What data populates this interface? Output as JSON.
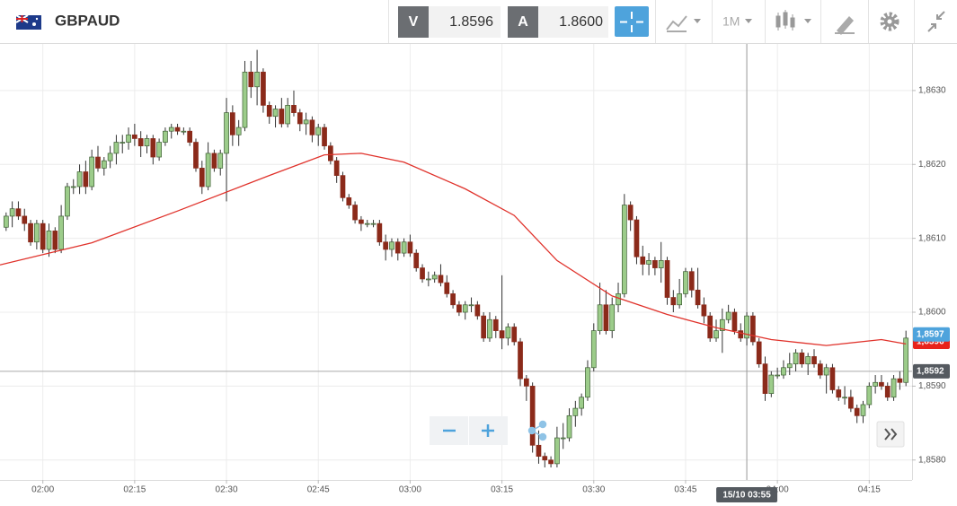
{
  "header": {
    "symbol": "GBPAUD",
    "sell_label": "V",
    "sell_price": "1.8596",
    "buy_label": "A",
    "buy_price": "1.8600",
    "timeframe": "1M"
  },
  "chart_data": {
    "type": "candlestick",
    "x": [
      "01:54",
      "01:55",
      "01:56",
      "01:57",
      "01:58",
      "01:59",
      "02:00",
      "02:01",
      "02:02",
      "02:03",
      "02:04",
      "02:05",
      "02:06",
      "02:07",
      "02:08",
      "02:09",
      "02:10",
      "02:11",
      "02:12",
      "02:13",
      "02:14",
      "02:15",
      "02:16",
      "02:17",
      "02:18",
      "02:19",
      "02:20",
      "02:21",
      "02:22",
      "02:23",
      "02:24",
      "02:25",
      "02:26",
      "02:27",
      "02:28",
      "02:29",
      "02:30",
      "02:31",
      "02:32",
      "02:33",
      "02:34",
      "02:35",
      "02:36",
      "02:37",
      "02:38",
      "02:39",
      "02:40",
      "02:41",
      "02:42",
      "02:43",
      "02:44",
      "02:45",
      "02:46",
      "02:47",
      "02:48",
      "02:49",
      "02:50",
      "02:51",
      "02:52",
      "02:53",
      "02:54",
      "02:55",
      "02:56",
      "02:57",
      "02:58",
      "02:59",
      "03:00",
      "03:01",
      "03:02",
      "03:03",
      "03:04",
      "03:05",
      "03:06",
      "03:07",
      "03:08",
      "03:09",
      "03:10",
      "03:11",
      "03:12",
      "03:13",
      "03:14",
      "03:15",
      "03:16",
      "03:17",
      "03:18",
      "03:19",
      "03:20",
      "03:21",
      "03:22",
      "03:23",
      "03:24",
      "03:25",
      "03:26",
      "03:27",
      "03:28",
      "03:29",
      "03:30",
      "03:31",
      "03:32",
      "03:33",
      "03:34",
      "03:35",
      "03:36",
      "03:37",
      "03:38",
      "03:39",
      "03:40",
      "03:41",
      "03:42",
      "03:43",
      "03:44",
      "03:45",
      "03:46",
      "03:47",
      "03:48",
      "03:49",
      "03:50",
      "03:51",
      "03:52",
      "03:53",
      "03:54",
      "03:55",
      "03:56",
      "03:57",
      "03:58",
      "03:59",
      "04:00",
      "04:01",
      "04:02",
      "04:03",
      "04:04",
      "04:05",
      "04:06",
      "04:07",
      "04:08",
      "04:09",
      "04:10",
      "04:11",
      "04:12",
      "04:13",
      "04:14",
      "04:15",
      "04:16",
      "04:17",
      "04:18",
      "04:19",
      "04:20",
      "04:21"
    ],
    "ohlc": [
      [
        1.86115,
        1.86135,
        1.8611,
        1.8613
      ],
      [
        1.8613,
        1.8615,
        1.86115,
        1.8614
      ],
      [
        1.8614,
        1.8615,
        1.86125,
        1.8613
      ],
      [
        1.8613,
        1.8614,
        1.8611,
        1.8612
      ],
      [
        1.8612,
        1.86125,
        1.8609,
        1.86095
      ],
      [
        1.86095,
        1.86125,
        1.86085,
        1.8612
      ],
      [
        1.8612,
        1.86125,
        1.8608,
        1.86085
      ],
      [
        1.86085,
        1.8612,
        1.86075,
        1.8611
      ],
      [
        1.8611,
        1.86115,
        1.8608,
        1.86085
      ],
      [
        1.86085,
        1.86145,
        1.8608,
        1.8613
      ],
      [
        1.8613,
        1.86175,
        1.86125,
        1.8617
      ],
      [
        1.8617,
        1.8618,
        1.8616,
        1.8617
      ],
      [
        1.8617,
        1.862,
        1.8616,
        1.8619
      ],
      [
        1.8619,
        1.86205,
        1.8616,
        1.8617
      ],
      [
        1.8617,
        1.8622,
        1.86165,
        1.8621
      ],
      [
        1.8621,
        1.86225,
        1.8619,
        1.86195
      ],
      [
        1.86195,
        1.8621,
        1.86185,
        1.86205
      ],
      [
        1.86205,
        1.86225,
        1.86195,
        1.86215
      ],
      [
        1.86215,
        1.8624,
        1.862,
        1.8623
      ],
      [
        1.8623,
        1.8624,
        1.86215,
        1.8623
      ],
      [
        1.8623,
        1.8625,
        1.8622,
        1.8624
      ],
      [
        1.8624,
        1.86255,
        1.86225,
        1.86235
      ],
      [
        1.86235,
        1.86245,
        1.8621,
        1.86225
      ],
      [
        1.86225,
        1.8624,
        1.86215,
        1.86235
      ],
      [
        1.86235,
        1.8624,
        1.862,
        1.8621
      ],
      [
        1.8621,
        1.86235,
        1.86205,
        1.8623
      ],
      [
        1.8623,
        1.8625,
        1.86225,
        1.86245
      ],
      [
        1.86245,
        1.86255,
        1.86235,
        1.8625
      ],
      [
        1.8625,
        1.86255,
        1.8624,
        1.86245
      ],
      [
        1.86245,
        1.8625,
        1.8624,
        1.86245
      ],
      [
        1.86245,
        1.8625,
        1.86225,
        1.8623
      ],
      [
        1.8623,
        1.86235,
        1.8619,
        1.86195
      ],
      [
        1.86195,
        1.86205,
        1.8616,
        1.8617
      ],
      [
        1.8617,
        1.8623,
        1.86165,
        1.86215
      ],
      [
        1.86215,
        1.8622,
        1.8619,
        1.86195
      ],
      [
        1.86195,
        1.8622,
        1.86185,
        1.86215
      ],
      [
        1.86215,
        1.8629,
        1.8615,
        1.8627
      ],
      [
        1.8627,
        1.8628,
        1.86225,
        1.8624
      ],
      [
        1.8624,
        1.8626,
        1.86225,
        1.8625
      ],
      [
        1.8625,
        1.8634,
        1.86245,
        1.86325
      ],
      [
        1.86325,
        1.8634,
        1.8629,
        1.86305
      ],
      [
        1.86305,
        1.86355,
        1.8628,
        1.86325
      ],
      [
        1.86325,
        1.8633,
        1.8627,
        1.8628
      ],
      [
        1.8628,
        1.86285,
        1.86255,
        1.86265
      ],
      [
        1.86265,
        1.8628,
        1.8625,
        1.86275
      ],
      [
        1.86275,
        1.8629,
        1.8625,
        1.86255
      ],
      [
        1.86255,
        1.8629,
        1.8625,
        1.8628
      ],
      [
        1.8628,
        1.863,
        1.86265,
        1.8627
      ],
      [
        1.8627,
        1.86275,
        1.86245,
        1.86255
      ],
      [
        1.86255,
        1.8627,
        1.8624,
        1.8626
      ],
      [
        1.8626,
        1.86265,
        1.8623,
        1.8624
      ],
      [
        1.8624,
        1.86255,
        1.86225,
        1.8625
      ],
      [
        1.8625,
        1.86255,
        1.8622,
        1.86225
      ],
      [
        1.86225,
        1.8623,
        1.862,
        1.86205
      ],
      [
        1.86205,
        1.8621,
        1.86175,
        1.86185
      ],
      [
        1.86185,
        1.8619,
        1.8615,
        1.86155
      ],
      [
        1.86155,
        1.8616,
        1.8614,
        1.86145
      ],
      [
        1.86145,
        1.8615,
        1.8612,
        1.86125
      ],
      [
        1.86125,
        1.8613,
        1.8611,
        1.8612
      ],
      [
        1.8612,
        1.86125,
        1.86115,
        1.8612
      ],
      [
        1.8612,
        1.86125,
        1.86115,
        1.8612
      ],
      [
        1.8612,
        1.86125,
        1.8609,
        1.86095
      ],
      [
        1.86095,
        1.86105,
        1.8607,
        1.86085
      ],
      [
        1.86085,
        1.861,
        1.86075,
        1.86095
      ],
      [
        1.86095,
        1.861,
        1.8607,
        1.8608
      ],
      [
        1.8608,
        1.861,
        1.86075,
        1.86095
      ],
      [
        1.86095,
        1.86105,
        1.86075,
        1.8608
      ],
      [
        1.8608,
        1.86085,
        1.86055,
        1.8606
      ],
      [
        1.8606,
        1.86065,
        1.8604,
        1.86045
      ],
      [
        1.86045,
        1.86055,
        1.86035,
        1.86045
      ],
      [
        1.86045,
        1.86055,
        1.8604,
        1.8605
      ],
      [
        1.8605,
        1.86065,
        1.86035,
        1.8604
      ],
      [
        1.8604,
        1.8605,
        1.8602,
        1.86025
      ],
      [
        1.86025,
        1.8603,
        1.86005,
        1.8601
      ],
      [
        1.8601,
        1.86015,
        1.85995,
        1.86
      ],
      [
        1.86,
        1.86015,
        1.8599,
        1.8601
      ],
      [
        1.8601,
        1.8602,
        1.86,
        1.8601
      ],
      [
        1.8601,
        1.86015,
        1.8599,
        1.85995
      ],
      [
        1.85995,
        1.86,
        1.8596,
        1.85965
      ],
      [
        1.85965,
        1.86,
        1.8596,
        1.8599
      ],
      [
        1.8599,
        1.85995,
        1.85965,
        1.85975
      ],
      [
        1.85975,
        1.8605,
        1.8595,
        1.85965
      ],
      [
        1.85965,
        1.85985,
        1.85955,
        1.8598
      ],
      [
        1.8598,
        1.85985,
        1.85955,
        1.8596
      ],
      [
        1.8596,
        1.85965,
        1.859,
        1.8591
      ],
      [
        1.8591,
        1.85915,
        1.8588,
        1.859
      ],
      [
        1.859,
        1.85905,
        1.8581,
        1.8582
      ],
      [
        1.8582,
        1.8584,
        1.85795,
        1.85805
      ],
      [
        1.85805,
        1.8581,
        1.8579,
        1.858
      ],
      [
        1.858,
        1.85805,
        1.8579,
        1.85795
      ],
      [
        1.85795,
        1.85845,
        1.8579,
        1.8583
      ],
      [
        1.8583,
        1.8585,
        1.85815,
        1.8583
      ],
      [
        1.8583,
        1.8587,
        1.85825,
        1.8586
      ],
      [
        1.8586,
        1.8588,
        1.85845,
        1.8587
      ],
      [
        1.8587,
        1.8589,
        1.8586,
        1.85885
      ],
      [
        1.85885,
        1.85935,
        1.8588,
        1.85925
      ],
      [
        1.85925,
        1.85985,
        1.8592,
        1.85975
      ],
      [
        1.85975,
        1.8604,
        1.8597,
        1.8601
      ],
      [
        1.8601,
        1.8603,
        1.8597,
        1.85975
      ],
      [
        1.85975,
        1.8602,
        1.85965,
        1.8601
      ],
      [
        1.8601,
        1.8604,
        1.86,
        1.86025
      ],
      [
        1.86025,
        1.8616,
        1.8602,
        1.86145
      ],
      [
        1.86145,
        1.8615,
        1.8611,
        1.86125
      ],
      [
        1.86125,
        1.8613,
        1.86065,
        1.86075
      ],
      [
        1.86075,
        1.8609,
        1.8605,
        1.86065
      ],
      [
        1.86065,
        1.8608,
        1.8605,
        1.8607
      ],
      [
        1.8607,
        1.86075,
        1.8605,
        1.8606
      ],
      [
        1.8606,
        1.86095,
        1.8604,
        1.8607
      ],
      [
        1.8607,
        1.86075,
        1.8601,
        1.8602
      ],
      [
        1.8602,
        1.8603,
        1.86,
        1.8601
      ],
      [
        1.8601,
        1.86045,
        1.86005,
        1.86025
      ],
      [
        1.86025,
        1.8606,
        1.8602,
        1.86055
      ],
      [
        1.86055,
        1.8606,
        1.8602,
        1.8603
      ],
      [
        1.8603,
        1.8606,
        1.86005,
        1.8601
      ],
      [
        1.8601,
        1.8602,
        1.85985,
        1.85995
      ],
      [
        1.85995,
        1.86,
        1.8596,
        1.85965
      ],
      [
        1.85965,
        1.8599,
        1.8596,
        1.85975
      ],
      [
        1.85975,
        1.86005,
        1.85945,
        1.8599
      ],
      [
        1.8599,
        1.8601,
        1.85985,
        1.86
      ],
      [
        1.86,
        1.86005,
        1.8597,
        1.85975
      ],
      [
        1.85975,
        1.85985,
        1.8596,
        1.85965
      ],
      [
        1.85965,
        1.86,
        1.85955,
        1.85995
      ],
      [
        1.85995,
        1.86,
        1.85955,
        1.8596
      ],
      [
        1.8596,
        1.85965,
        1.85925,
        1.8593
      ],
      [
        1.8593,
        1.8594,
        1.8588,
        1.8589
      ],
      [
        1.8589,
        1.8592,
        1.85885,
        1.85915
      ],
      [
        1.85915,
        1.85925,
        1.8591,
        1.85915
      ],
      [
        1.85915,
        1.85935,
        1.8591,
        1.85925
      ],
      [
        1.85925,
        1.85945,
        1.85915,
        1.8593
      ],
      [
        1.8593,
        1.8595,
        1.8592,
        1.85945
      ],
      [
        1.85945,
        1.8595,
        1.85925,
        1.8593
      ],
      [
        1.8593,
        1.85945,
        1.85915,
        1.8594
      ],
      [
        1.8594,
        1.8595,
        1.85925,
        1.8593
      ],
      [
        1.8593,
        1.85935,
        1.8591,
        1.85915
      ],
      [
        1.85915,
        1.8593,
        1.8589,
        1.85925
      ],
      [
        1.85925,
        1.8593,
        1.8589,
        1.85895
      ],
      [
        1.85895,
        1.859,
        1.8588,
        1.85885
      ],
      [
        1.85885,
        1.859,
        1.85875,
        1.85885
      ],
      [
        1.85885,
        1.85895,
        1.85865,
        1.8587
      ],
      [
        1.8587,
        1.85875,
        1.8585,
        1.8586
      ],
      [
        1.8586,
        1.8588,
        1.8585,
        1.85875
      ],
      [
        1.85875,
        1.85905,
        1.8587,
        1.859
      ],
      [
        1.859,
        1.85915,
        1.8589,
        1.85905
      ],
      [
        1.85905,
        1.85915,
        1.85895,
        1.859
      ],
      [
        1.859,
        1.85905,
        1.8588,
        1.85885
      ],
      [
        1.85885,
        1.85915,
        1.8588,
        1.8591
      ],
      [
        1.8591,
        1.8592,
        1.85895,
        1.85905
      ],
      [
        1.85905,
        1.85975,
        1.859,
        1.85965
      ]
    ],
    "up_color": "#9ccc8a",
    "down_color": "#8b2a1a",
    "wick_color": "#333333",
    "moving_average": {
      "color": "#e0322b",
      "x": [
        "01:53",
        "02:08",
        "02:22",
        "02:37",
        "02:46",
        "02:52",
        "02:59",
        "03:09",
        "03:17",
        "03:24",
        "03:33",
        "03:42",
        "03:50",
        "03:59",
        "04:08",
        "04:17",
        "04:21"
      ],
      "values": [
        1.86064,
        1.86094,
        1.86137,
        1.86185,
        1.86213,
        1.86215,
        1.86203,
        1.86167,
        1.86131,
        1.8607,
        1.86022,
        1.85997,
        1.85979,
        1.85963,
        1.85955,
        1.85963,
        1.85957
      ]
    },
    "xlim": [
      "01:53",
      "04:22"
    ],
    "xticks": [
      "02:00",
      "02:15",
      "02:30",
      "02:45",
      "03:00",
      "03:15",
      "03:30",
      "03:45",
      "04:00",
      "04:15"
    ],
    "ylim": [
      1.85773,
      1.86363
    ],
    "yticks": [
      {
        "value": 1.858,
        "label": "1,8580"
      },
      {
        "value": 1.859,
        "label": "1,8590"
      },
      {
        "value": 1.86,
        "label": "1,8600"
      },
      {
        "value": 1.861,
        "label": "1,8610"
      },
      {
        "value": 1.862,
        "label": "1,8620"
      },
      {
        "value": 1.863,
        "label": "1,8630"
      }
    ],
    "grid": true,
    "price_labels": [
      {
        "value": 1.8596,
        "label": "1,8596",
        "color": "#e8231b",
        "line": false
      },
      {
        "value": 1.8597,
        "label": "1,8597",
        "color": "#4ea3dc",
        "line": false
      },
      {
        "value": 1.8592,
        "label": "1,8592",
        "color": "#555a60",
        "line": true
      }
    ],
    "crosshair": {
      "x": "03:55",
      "label": "15/10 03:55"
    }
  }
}
